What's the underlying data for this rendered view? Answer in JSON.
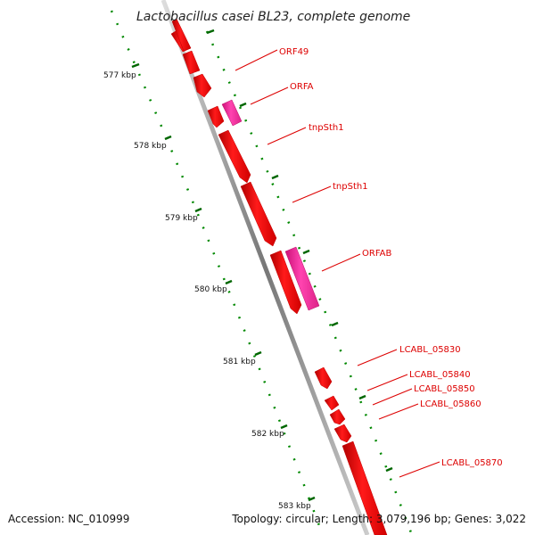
{
  "title": "Lactobacillus casei BL23, complete genome",
  "accession": "Accession: NC_010999",
  "summary": "Topology: circular; Length: 3,079,196 bp; Genes: 3,022",
  "ruler": [
    "577 kbp",
    "578 kbp",
    "579 kbp",
    "580 kbp",
    "581 kbp",
    "582 kbp",
    "583 kbp"
  ],
  "genes": [
    {
      "id": "ORF49",
      "label": "ORF49",
      "color": "#ff0000"
    },
    {
      "id": "ORFA",
      "label": "ORFA",
      "color": "#ff33aa"
    },
    {
      "id": "tnpSth1-a",
      "label": "tnpSth1",
      "color": "#ff0000"
    },
    {
      "id": "tnpSth1-b",
      "label": "tnpSth1",
      "color": "#ff0000"
    },
    {
      "id": "ORFAB",
      "label": "ORFAB",
      "color": "#ff33aa"
    },
    {
      "id": "LCABL_05830",
      "label": "LCABL_05830",
      "color": "#ff0000"
    },
    {
      "id": "LCABL_05840",
      "label": "LCABL_05840",
      "color": "#ff0000"
    },
    {
      "id": "LCABL_05850",
      "label": "LCABL_05850",
      "color": "#ff0000"
    },
    {
      "id": "LCABL_05860",
      "label": "LCABL_05860",
      "color": "#ff0000"
    },
    {
      "id": "LCABL_05870",
      "label": "LCABL_05870",
      "color": "#ff0000"
    }
  ],
  "colors": {
    "backbone": "#999999",
    "tick": "#007700",
    "label": "#dd0000"
  }
}
